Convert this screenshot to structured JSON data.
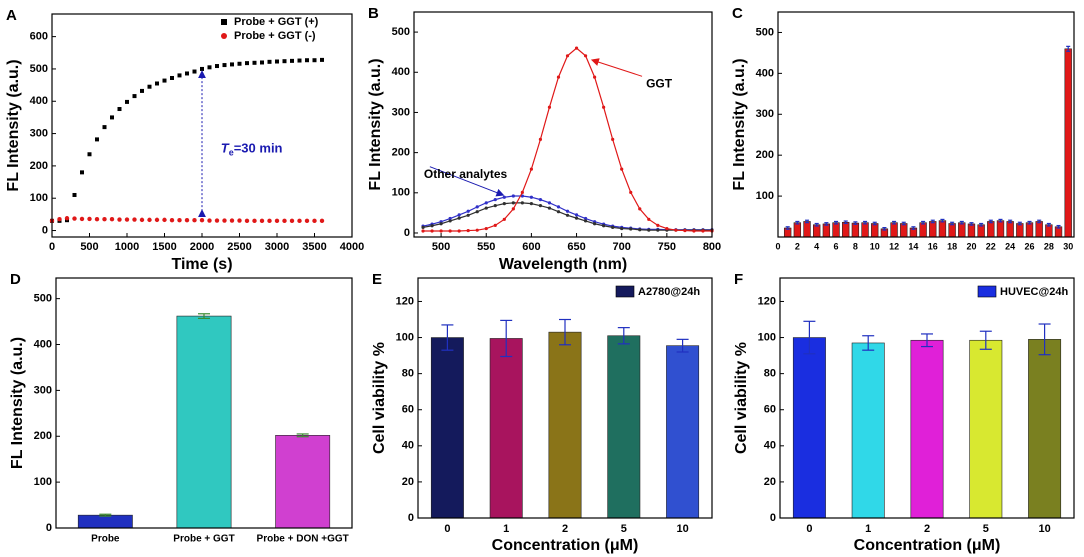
{
  "chart_data": [
    {
      "type": "scatter",
      "panel": "A",
      "xlabel": "Time (s)",
      "ylabel": "FL Intensity (a.u.)",
      "xlim": [
        0,
        4000
      ],
      "xticks": [
        0,
        500,
        1000,
        1500,
        2000,
        2500,
        3000,
        3500,
        4000
      ],
      "ylim": [
        -20,
        670
      ],
      "yticks": [
        0,
        100,
        200,
        300,
        400,
        500,
        600
      ],
      "x": [
        0,
        100,
        200,
        300,
        400,
        500,
        600,
        700,
        800,
        900,
        1000,
        1100,
        1200,
        1300,
        1400,
        1500,
        1600,
        1700,
        1800,
        1900,
        2000,
        2100,
        2200,
        2300,
        2400,
        2500,
        2600,
        2700,
        2800,
        2900,
        3000,
        3100,
        3200,
        3300,
        3400,
        3500,
        3600
      ],
      "series": [
        {
          "name": "Probe + GGT (+)",
          "color": "#000000",
          "marker": "square",
          "values": [
            30,
            30,
            32,
            110,
            180,
            236,
            282,
            320,
            350,
            376,
            398,
            416,
            432,
            445,
            455,
            464,
            472,
            480,
            486,
            492,
            500,
            505,
            509,
            512,
            514,
            516,
            518,
            519,
            520,
            522,
            523,
            524,
            525,
            526,
            527,
            527,
            528
          ]
        },
        {
          "name": "Probe + GGT (-)",
          "color": "#e01818",
          "marker": "circle",
          "values": [
            30,
            35,
            38,
            37,
            36,
            36,
            35,
            35,
            35,
            34,
            34,
            34,
            33,
            33,
            33,
            33,
            32,
            32,
            32,
            32,
            32,
            31,
            31,
            31,
            31,
            31,
            30,
            30,
            30,
            30,
            30,
            30,
            30,
            30,
            30,
            30,
            30
          ]
        }
      ],
      "annotation": [
        "T",
        "e",
        "=30 min"
      ],
      "annotation_color": "#1a1ab0"
    },
    {
      "type": "line",
      "panel": "B",
      "xlabel": "Wavelength (nm)",
      "ylabel": "FL Intensity (a.u.)",
      "xlim": [
        470,
        800
      ],
      "xticks": [
        500,
        550,
        600,
        650,
        700,
        750,
        800
      ],
      "ylim": [
        -10,
        550
      ],
      "yticks": [
        0,
        100,
        200,
        300,
        400,
        500
      ],
      "x": [
        480,
        490,
        500,
        510,
        520,
        530,
        540,
        550,
        560,
        570,
        580,
        590,
        600,
        610,
        620,
        630,
        640,
        650,
        660,
        670,
        680,
        690,
        700,
        710,
        720,
        730,
        740,
        750,
        760,
        770,
        780,
        790,
        800
      ],
      "series": [
        {
          "color": "#3030c8",
          "values": [
            17,
            22,
            28,
            36,
            45,
            54,
            65,
            75,
            83,
            89,
            92,
            92,
            89,
            83,
            75,
            65,
            54,
            45,
            36,
            28,
            22,
            17,
            14,
            12,
            10,
            9,
            9,
            8,
            8,
            8,
            8,
            8,
            8
          ]
        },
        {
          "color": "#303030",
          "values": [
            14,
            18,
            23,
            30,
            37,
            44,
            53,
            62,
            68,
            73,
            75,
            75,
            73,
            68,
            62,
            53,
            44,
            37,
            30,
            23,
            18,
            14,
            11,
            10,
            8,
            7,
            7,
            7,
            7,
            7,
            7,
            7,
            7
          ]
        },
        {
          "color": "#e01818",
          "values": [
            5,
            5,
            5,
            5,
            5,
            6,
            7,
            11,
            19,
            34,
            60,
            101,
            159,
            233,
            313,
            388,
            441,
            460,
            441,
            388,
            313,
            233,
            159,
            101,
            60,
            34,
            19,
            11,
            7,
            6,
            5,
            5,
            5
          ]
        }
      ],
      "annotations": [
        {
          "text": "GGT",
          "color": "#e01818"
        },
        {
          "text": "Other analytes",
          "color": "#1a1ab0"
        }
      ]
    },
    {
      "type": "bar",
      "panel": "C",
      "ylabel": "FL Intensity (a.u.)",
      "xlim": [
        0,
        30.6
      ],
      "xticks": [
        0,
        2,
        4,
        6,
        8,
        10,
        12,
        14,
        16,
        18,
        20,
        22,
        24,
        26,
        28,
        30
      ],
      "ylim": [
        0,
        550
      ],
      "yticks": [
        100,
        200,
        300,
        400,
        500
      ],
      "x": [
        1,
        2,
        3,
        4,
        5,
        6,
        7,
        8,
        9,
        10,
        11,
        12,
        13,
        14,
        15,
        16,
        17,
        18,
        19,
        20,
        21,
        22,
        23,
        24,
        25,
        26,
        27,
        28,
        29,
        30
      ],
      "series": [
        {
          "color": "#e01818",
          "error_color": "#2030c0",
          "values": [
            22,
            35,
            38,
            30,
            32,
            35,
            36,
            34,
            35,
            33,
            20,
            35,
            33,
            22,
            35,
            38,
            40,
            33,
            35,
            32,
            30,
            38,
            40,
            38,
            33,
            35,
            38,
            30,
            25,
            460
          ],
          "errors": [
            3,
            3,
            3,
            3,
            3,
            3,
            3,
            3,
            3,
            3,
            3,
            3,
            3,
            3,
            3,
            3,
            3,
            3,
            3,
            3,
            3,
            3,
            3,
            3,
            3,
            3,
            3,
            3,
            3,
            6
          ]
        }
      ]
    },
    {
      "type": "bar",
      "panel": "D",
      "ylabel": "FL Intensity (a.u.)",
      "categories": [
        "Probe",
        "Probe + GGT",
        "Probe + DON +GGT"
      ],
      "ylim": [
        0,
        545
      ],
      "yticks": [
        0,
        100,
        200,
        300,
        400,
        500
      ],
      "series": [
        {
          "colors": [
            "#2030c0",
            "#30c8c0",
            "#d040d0"
          ],
          "error_color": "#3a8a30",
          "values": [
            28,
            462,
            202
          ],
          "errors": [
            2,
            5,
            3
          ]
        }
      ]
    },
    {
      "type": "bar",
      "panel": "E",
      "xlabel": "Concentration (μM)",
      "ylabel": "Cell viability %",
      "categories": [
        "0",
        "1",
        "2",
        "5",
        "10"
      ],
      "ylim": [
        0,
        133
      ],
      "yticks": [
        0,
        20,
        40,
        60,
        80,
        100,
        120
      ],
      "series": [
        {
          "name": "A2780@24h",
          "color": "#141a5c",
          "colors": [
            "#141a5c",
            "#a8145e",
            "#8a7418",
            "#1f6f5f",
            "#3050d0"
          ],
          "error_color": "#2030c0",
          "values": [
            100,
            99.5,
            103,
            101,
            95.5
          ],
          "errors": [
            7,
            10,
            7,
            4.5,
            3.5
          ]
        }
      ]
    },
    {
      "type": "bar",
      "panel": "F",
      "xlabel": "Concentration (μM)",
      "ylabel": "Cell viability %",
      "categories": [
        "0",
        "1",
        "2",
        "5",
        "10"
      ],
      "ylim": [
        0,
        133
      ],
      "yticks": [
        0,
        20,
        40,
        60,
        80,
        100,
        120
      ],
      "series": [
        {
          "name": "HUVEC@24h",
          "color": "#1a2ee0",
          "colors": [
            "#1a2ee0",
            "#30d8e8",
            "#e020d8",
            "#d8e830",
            "#7a8020"
          ],
          "error_color": "#2030c0",
          "values": [
            100,
            97,
            98.5,
            98.5,
            99
          ],
          "errors": [
            9,
            4,
            3.5,
            5,
            8.5
          ]
        }
      ]
    }
  ]
}
